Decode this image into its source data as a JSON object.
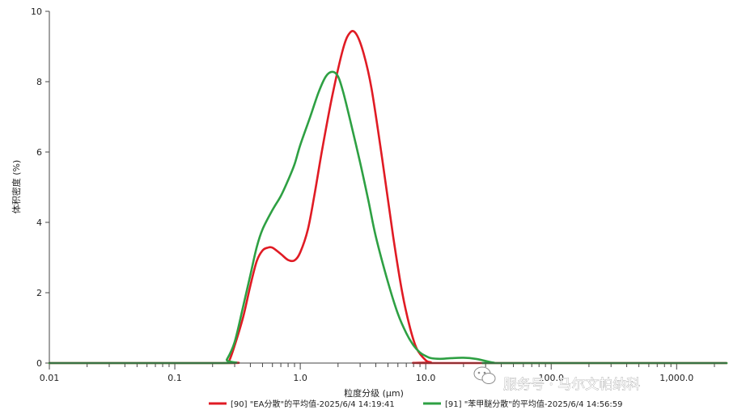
{
  "chart_data": {
    "type": "line",
    "xlabel": "粒度分级 (μm)",
    "ylabel": "体积密度 (%)",
    "x_scale": "log",
    "xlim": [
      0.01,
      2500
    ],
    "ylim": [
      0,
      10
    ],
    "x_ticks": [
      0.01,
      0.1,
      1.0,
      10.0,
      100.0,
      1000.0
    ],
    "x_tick_labels": [
      "0.01",
      "0.1",
      "1.0",
      "10.0",
      "100.0",
      "1,000.0"
    ],
    "y_ticks": [
      0,
      2,
      4,
      6,
      8,
      10
    ],
    "y_tick_labels": [
      "0",
      "2",
      "4",
      "6",
      "8",
      "10"
    ],
    "grid": false,
    "legend_position": "bottom",
    "series": [
      {
        "name": "[90] \"EA分散\"的平均值-2025/6/4 14:19:41",
        "color": "#e01b24",
        "points": [
          [
            0.01,
            0
          ],
          [
            0.25,
            0
          ],
          [
            0.27,
            0.05
          ],
          [
            0.3,
            0.5
          ],
          [
            0.35,
            1.3
          ],
          [
            0.4,
            2.2
          ],
          [
            0.45,
            2.9
          ],
          [
            0.5,
            3.2
          ],
          [
            0.55,
            3.28
          ],
          [
            0.6,
            3.28
          ],
          [
            0.7,
            3.1
          ],
          [
            0.8,
            2.93
          ],
          [
            0.9,
            2.92
          ],
          [
            1.0,
            3.15
          ],
          [
            1.15,
            3.8
          ],
          [
            1.3,
            4.8
          ],
          [
            1.5,
            6.1
          ],
          [
            1.8,
            7.6
          ],
          [
            2.2,
            8.95
          ],
          [
            2.5,
            9.4
          ],
          [
            2.8,
            9.35
          ],
          [
            3.2,
            8.8
          ],
          [
            3.7,
            7.8
          ],
          [
            4.5,
            5.8
          ],
          [
            5.5,
            3.6
          ],
          [
            6.5,
            2.0
          ],
          [
            7.5,
            1.0
          ],
          [
            8.5,
            0.4
          ],
          [
            10,
            0.08
          ],
          [
            11,
            0.02
          ],
          [
            12,
            0
          ],
          [
            2500,
            0
          ]
        ]
      },
      {
        "name": "[91] \"苯甲醚分散\"的平均值-2025/6/4 14:56:59",
        "color": "#2ea043",
        "points": [
          [
            0.01,
            0
          ],
          [
            0.24,
            0
          ],
          [
            0.26,
            0.1
          ],
          [
            0.3,
            0.6
          ],
          [
            0.35,
            1.6
          ],
          [
            0.4,
            2.5
          ],
          [
            0.45,
            3.3
          ],
          [
            0.5,
            3.8
          ],
          [
            0.6,
            4.35
          ],
          [
            0.7,
            4.75
          ],
          [
            0.8,
            5.2
          ],
          [
            0.9,
            5.65
          ],
          [
            1.0,
            6.2
          ],
          [
            1.2,
            7.0
          ],
          [
            1.4,
            7.7
          ],
          [
            1.6,
            8.15
          ],
          [
            1.8,
            8.28
          ],
          [
            2.0,
            8.15
          ],
          [
            2.2,
            7.7
          ],
          [
            2.5,
            6.9
          ],
          [
            3.0,
            5.7
          ],
          [
            3.5,
            4.6
          ],
          [
            4.0,
            3.6
          ],
          [
            5.0,
            2.3
          ],
          [
            6.0,
            1.4
          ],
          [
            7.0,
            0.85
          ],
          [
            8.0,
            0.5
          ],
          [
            9.0,
            0.3
          ],
          [
            10.0,
            0.2
          ],
          [
            11.0,
            0.14
          ],
          [
            13.0,
            0.12
          ],
          [
            16.0,
            0.14
          ],
          [
            20.0,
            0.15
          ],
          [
            25.0,
            0.12
          ],
          [
            30.0,
            0.06
          ],
          [
            35.0,
            0.01
          ],
          [
            40,
            0
          ],
          [
            2500,
            0
          ]
        ]
      }
    ]
  },
  "watermark": {
    "text": "服务号 · 马尔文帕纳科",
    "icon": "wechat-icon"
  }
}
